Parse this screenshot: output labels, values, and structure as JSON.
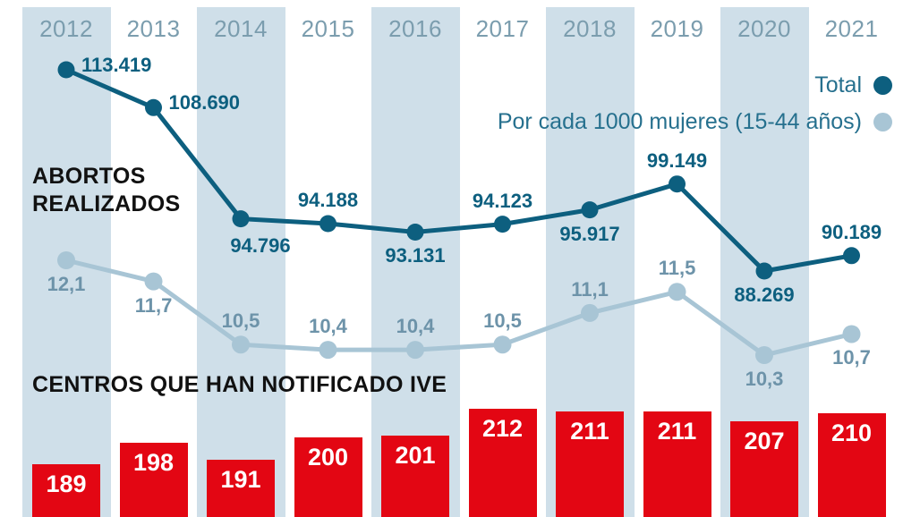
{
  "colors": {
    "band": "#cfdfe9",
    "total_line": "#0d5f7f",
    "rate_line": "#a8c5d5",
    "rate_label": "#6d93a9",
    "year_label": "#7b9dae",
    "legend_text": "#26708e",
    "title_text": "#111111",
    "bar": "#e30613",
    "bar_label": "#ffffff"
  },
  "titles": {
    "line_section": "ABORTOS\nREALIZADOS",
    "bar_section": "CENTROS QUE HAN NOTIFICADO IVE"
  },
  "legend": {
    "total_label": "Total",
    "rate_label": "Por cada 1000 mujeres (15-44 años)"
  },
  "chart_data": [
    {
      "type": "line",
      "title": "ABORTOS REALIZADOS",
      "categories": [
        "2012",
        "2013",
        "2014",
        "2015",
        "2016",
        "2017",
        "2018",
        "2019",
        "2020",
        "2021"
      ],
      "grid": "alternating-column-bands",
      "legend_position": "top-right",
      "series": [
        {
          "name": "Total",
          "values": [
            113419,
            108690,
            94796,
            94188,
            93131,
            94123,
            95917,
            99149,
            88269,
            90189
          ],
          "labels": [
            "113.419",
            "108.690",
            "94.796",
            "94.188",
            "93.131",
            "94.123",
            "95.917",
            "99.149",
            "88.269",
            "90.189"
          ],
          "label_pos": [
            "right",
            "right",
            "below-right",
            "above",
            "below",
            "above",
            "below",
            "above",
            "below",
            "above"
          ]
        },
        {
          "name": "Por cada 1000 mujeres (15-44 años)",
          "values": [
            12.1,
            11.7,
            10.5,
            10.4,
            10.4,
            10.5,
            11.1,
            11.5,
            10.3,
            10.7
          ],
          "labels": [
            "12,1",
            "11,7",
            "10,5",
            "10,4",
            "10,4",
            "10,5",
            "11,1",
            "11,5",
            "10,3",
            "10,7"
          ],
          "label_pos": [
            "below",
            "below",
            "above",
            "above",
            "above",
            "above",
            "above",
            "above",
            "below",
            "below"
          ]
        }
      ]
    },
    {
      "type": "bar",
      "title": "CENTROS QUE HAN NOTIFICADO IVE",
      "categories": [
        "2012",
        "2013",
        "2014",
        "2015",
        "2016",
        "2017",
        "2018",
        "2019",
        "2020",
        "2021"
      ],
      "values": [
        189,
        198,
        191,
        200,
        201,
        212,
        211,
        211,
        207,
        210
      ],
      "ylim": [
        0,
        212
      ]
    }
  ]
}
